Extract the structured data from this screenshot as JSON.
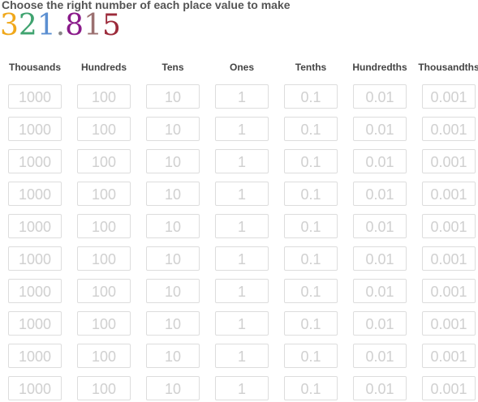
{
  "prompt": "Choose the right number of each place value to make",
  "target_digits": [
    {
      "char": "3",
      "color": "#f0a81b"
    },
    {
      "char": "2",
      "color": "#3fa36f"
    },
    {
      "char": "1",
      "color": "#5b8fd1"
    },
    {
      "char": ".",
      "color": "#888888"
    },
    {
      "char": "8",
      "color": "#8a1b8a"
    },
    {
      "char": "1",
      "color": "#9b7070"
    },
    {
      "char": "5",
      "color": "#9c2a3a"
    }
  ],
  "columns": [
    {
      "name": "thousands",
      "header": "Thousands",
      "value": "1000"
    },
    {
      "name": "hundreds",
      "header": "Hundreds",
      "value": "100"
    },
    {
      "name": "tens",
      "header": "Tens",
      "value": "10"
    },
    {
      "name": "ones",
      "header": "Ones",
      "value": "1"
    },
    {
      "name": "tenths",
      "header": "Tenths",
      "value": "0.1"
    },
    {
      "name": "hundredths",
      "header": "Hundredths",
      "value": "0.01"
    },
    {
      "name": "thousandths",
      "header": "Thousandths",
      "value": "0.001"
    }
  ],
  "tiles_per_column": 10
}
